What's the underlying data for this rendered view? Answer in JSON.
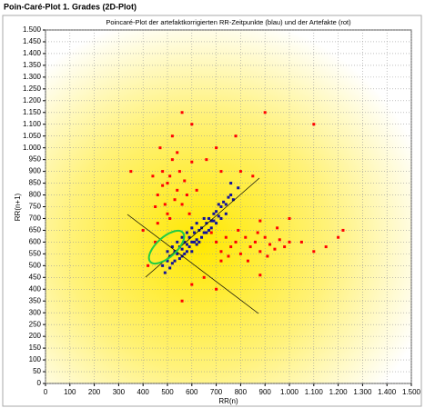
{
  "chart_data": {
    "type": "scatter",
    "title": "Poin-Caré-Plot 1. Grades (2D-Plot)",
    "subtitle": "Poincaré-Plot der artefaktkorrigierten RR-Zeitpunkte (blau) und der Artefakte (rot)",
    "x_label": "RR(n)",
    "y_label": "RR(n+1)",
    "xlim": [
      0,
      1500
    ],
    "ylim": [
      0,
      1500
    ],
    "grid": true,
    "xticks": [
      0,
      100,
      200,
      300,
      400,
      500,
      600,
      700,
      800,
      900,
      {
        "value": 1000,
        "label": "1.000"
      },
      {
        "value": 1100,
        "label": "1.100"
      },
      {
        "value": 1200,
        "label": "1.200"
      },
      {
        "value": 1300,
        "label": "1.300"
      },
      {
        "value": 1400,
        "label": "1.400"
      },
      {
        "value": 1500,
        "label": "1.500"
      }
    ],
    "yticks": [
      0,
      50,
      100,
      150,
      200,
      250,
      300,
      350,
      400,
      450,
      500,
      550,
      600,
      650,
      700,
      750,
      800,
      850,
      900,
      950,
      {
        "value": 1000,
        "label": "1.000"
      },
      {
        "value": 1050,
        "label": "1.050"
      },
      {
        "value": 1100,
        "label": "1.100"
      },
      {
        "value": 1150,
        "label": "1.150"
      },
      {
        "value": 1200,
        "label": "1.200"
      },
      {
        "value": 1250,
        "label": "1.250"
      },
      {
        "value": 1300,
        "label": "1.300"
      },
      {
        "value": 1350,
        "label": "1.350"
      },
      {
        "value": 1400,
        "label": "1.400"
      },
      {
        "value": 1450,
        "label": "1.450"
      },
      {
        "value": 1500,
        "label": "1.500"
      }
    ],
    "series": [
      {
        "color": "#ff0000",
        "x": [
          480,
          500,
          520,
          540,
          460,
          490,
          510,
          530,
          550,
          570,
          580,
          600,
          470,
          520,
          440,
          560,
          500,
          480,
          540,
          590,
          620,
          450,
          510,
          600,
          560,
          660,
          700,
          720,
          800,
          850,
          700,
          720,
          740,
          760,
          780,
          800,
          820,
          840,
          860,
          880,
          900,
          920,
          940,
          960,
          980,
          1000,
          750,
          790,
          830,
          870,
          910,
          950,
          1050,
          1100,
          1150,
          1200,
          1220,
          680,
          720,
          880,
          350,
          400,
          420,
          600,
          560,
          650,
          700,
          880,
          1000,
          1100,
          900,
          780,
          450,
          460
        ],
        "values": [
          900,
          850,
          950,
          820,
          800,
          760,
          880,
          780,
          900,
          860,
          800,
          940,
          1000,
          1050,
          880,
          760,
          720,
          840,
          980,
          720,
          820,
          750,
          700,
          1100,
          1150,
          950,
          1000,
          900,
          900,
          880,
          600,
          560,
          620,
          580,
          600,
          550,
          620,
          580,
          600,
          560,
          620,
          590,
          570,
          610,
          580,
          600,
          540,
          650,
          520,
          640,
          540,
          660,
          600,
          560,
          580,
          620,
          650,
          640,
          520,
          690,
          900,
          650,
          500,
          420,
          350,
          450,
          400,
          460,
          700,
          1100,
          1150,
          1050,
          600,
          680
        ]
      },
      {
        "color": "#10109a",
        "x": [
          480,
          500,
          510,
          520,
          530,
          540,
          550,
          560,
          570,
          580,
          590,
          600,
          610,
          620,
          630,
          640,
          650,
          660,
          670,
          680,
          690,
          700,
          710,
          720,
          730,
          740,
          750,
          760,
          500,
          520,
          540,
          560,
          580,
          600,
          620,
          560,
          580,
          600,
          620,
          640,
          660,
          680,
          700,
          720,
          490,
          510,
          530,
          550,
          570,
          590,
          610,
          630,
          650,
          670,
          690,
          710,
          740,
          770,
          790,
          760
        ],
        "values": [
          500,
          520,
          540,
          510,
          560,
          550,
          580,
          570,
          600,
          560,
          620,
          600,
          640,
          610,
          650,
          660,
          640,
          680,
          700,
          690,
          720,
          730,
          710,
          750,
          770,
          760,
          790,
          800,
          560,
          580,
          600,
          620,
          640,
          660,
          680,
          540,
          590,
          560,
          590,
          620,
          640,
          660,
          680,
          700,
          470,
          490,
          520,
          530,
          550,
          580,
          600,
          600,
          700,
          650,
          690,
          760,
          720,
          780,
          830,
          850
        ]
      }
    ]
  }
}
